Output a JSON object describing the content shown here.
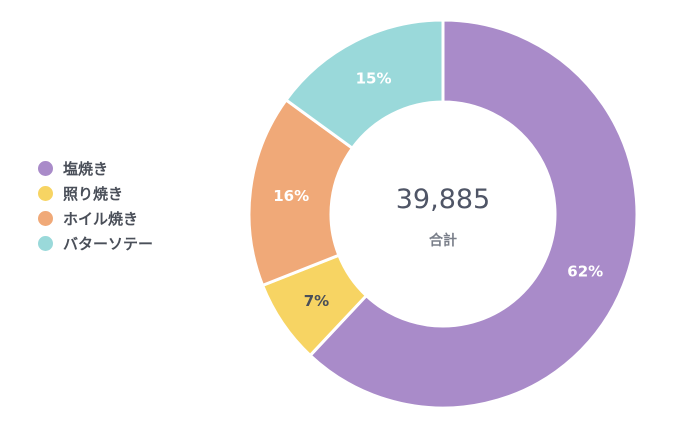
{
  "chart_data": {
    "type": "pie",
    "categories": [
      "塩焼き",
      "照り焼き",
      "ホイル焼き",
      "バターソテー"
    ],
    "values": [
      62,
      7,
      16,
      15
    ],
    "value_labels": [
      "62%",
      "7%",
      "16%",
      "15%"
    ],
    "total": {
      "value": "39,885",
      "label": "合計"
    },
    "legend_position": "left",
    "colors": [
      "#a98bc9",
      "#f7d463",
      "#f0a978",
      "#9ad9da"
    ]
  }
}
